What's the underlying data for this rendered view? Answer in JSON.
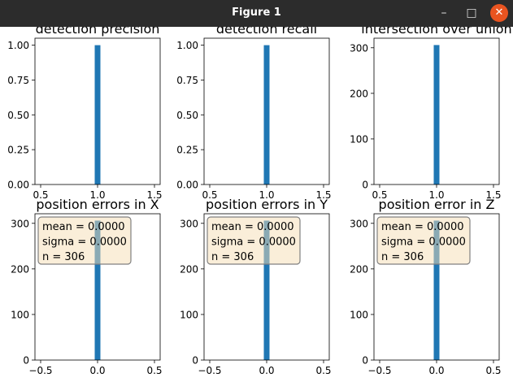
{
  "window": {
    "title": "Figure 1",
    "minimize_glyph": "–",
    "maximize_glyph": "□",
    "close_glyph": "✕"
  },
  "colors": {
    "bar": "#1f77b4",
    "stats_box_fill": "#f5deb3",
    "stats_box_edge": "#808080"
  },
  "chart_data": [
    {
      "type": "bar",
      "title": "detection precision",
      "xlim": [
        0.45,
        1.55
      ],
      "ylim": [
        0,
        1.05
      ],
      "xticks": [
        "0.5",
        "1.0",
        "1.5"
      ],
      "xtick_values": [
        0.5,
        1.0,
        1.5
      ],
      "yticks": [
        "0.00",
        "0.25",
        "0.50",
        "0.75",
        "1.00"
      ],
      "ytick_values": [
        0,
        0.25,
        0.5,
        0.75,
        1.0
      ],
      "bars": [
        {
          "x0": 0.975,
          "x1": 1.025,
          "value": 1.0
        }
      ]
    },
    {
      "type": "bar",
      "title": "detection recall",
      "xlim": [
        0.45,
        1.55
      ],
      "ylim": [
        0,
        1.05
      ],
      "xticks": [
        "0.5",
        "1.0",
        "1.5"
      ],
      "xtick_values": [
        0.5,
        1.0,
        1.5
      ],
      "yticks": [
        "0.00",
        "0.25",
        "0.50",
        "0.75",
        "1.00"
      ],
      "ytick_values": [
        0,
        0.25,
        0.5,
        0.75,
        1.0
      ],
      "bars": [
        {
          "x0": 0.975,
          "x1": 1.025,
          "value": 1.0
        }
      ]
    },
    {
      "type": "bar",
      "title": "intersection over union",
      "xlim": [
        0.45,
        1.55
      ],
      "ylim": [
        0,
        321
      ],
      "xticks": [
        "0.5",
        "1.0",
        "1.5"
      ],
      "xtick_values": [
        0.5,
        1.0,
        1.5
      ],
      "yticks": [
        "0",
        "100",
        "200",
        "300"
      ],
      "ytick_values": [
        0,
        100,
        200,
        300
      ],
      "bars": [
        {
          "x0": 0.975,
          "x1": 1.025,
          "value": 306
        }
      ]
    },
    {
      "type": "bar",
      "title": "position errors in X",
      "xlim": [
        -0.55,
        0.55
      ],
      "ylim": [
        0,
        321
      ],
      "xticks": [
        "−0.5",
        "0.0",
        "0.5"
      ],
      "xtick_values": [
        -0.5,
        0.0,
        0.5
      ],
      "yticks": [
        "0",
        "100",
        "200",
        "300"
      ],
      "ytick_values": [
        0,
        100,
        200,
        300
      ],
      "bars": [
        {
          "x0": -0.025,
          "x1": 0.025,
          "value": 306
        }
      ],
      "stats": [
        "mean = 0.0000",
        "sigma = 0.0000",
        "n = 306"
      ]
    },
    {
      "type": "bar",
      "title": "position errors in Y",
      "xlim": [
        -0.55,
        0.55
      ],
      "ylim": [
        0,
        321
      ],
      "xticks": [
        "−0.5",
        "0.0",
        "0.5"
      ],
      "xtick_values": [
        -0.5,
        0.0,
        0.5
      ],
      "yticks": [
        "0",
        "100",
        "200",
        "300"
      ],
      "ytick_values": [
        0,
        100,
        200,
        300
      ],
      "bars": [
        {
          "x0": -0.025,
          "x1": 0.025,
          "value": 306
        }
      ],
      "stats": [
        "mean = 0.0000",
        "sigma = 0.0000",
        "n = 306"
      ]
    },
    {
      "type": "bar",
      "title": "position error in Z",
      "xlim": [
        -0.55,
        0.55
      ],
      "ylim": [
        0,
        321
      ],
      "xticks": [
        "−0.5",
        "0.0",
        "0.5"
      ],
      "xtick_values": [
        -0.5,
        0.0,
        0.5
      ],
      "yticks": [
        "0",
        "100",
        "200",
        "300"
      ],
      "ytick_values": [
        0,
        100,
        200,
        300
      ],
      "bars": [
        {
          "x0": -0.025,
          "x1": 0.025,
          "value": 306
        }
      ],
      "stats": [
        "mean = 0.0000",
        "sigma = 0.0000",
        "n = 306"
      ]
    }
  ]
}
